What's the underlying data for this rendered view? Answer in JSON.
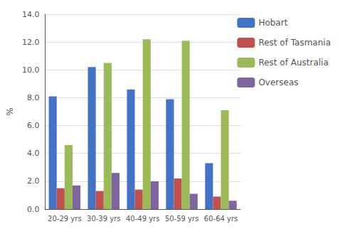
{
  "chart_data": {
    "type": "bar",
    "ylabel": "%",
    "categories": [
      "20-29 yrs",
      "30-39 yrs",
      "40-49 yrs",
      "50-59 yrs",
      "60-64 yrs"
    ],
    "series": [
      {
        "name": "Hobart",
        "color": "#4472C4",
        "values": [
          8.1,
          10.2,
          8.6,
          7.9,
          3.3
        ]
      },
      {
        "name": "Rest of Tasmania",
        "color": "#C0504D",
        "values": [
          1.5,
          1.3,
          1.4,
          2.2,
          0.9
        ]
      },
      {
        "name": "Rest of Australia",
        "color": "#9BBB59",
        "values": [
          4.6,
          10.5,
          12.2,
          12.1,
          7.1
        ]
      },
      {
        "name": "Overseas",
        "color": "#8064A2",
        "values": [
          1.7,
          2.6,
          2.0,
          1.1,
          0.6
        ]
      }
    ],
    "ylim": [
      0,
      14.0
    ],
    "yticks": [
      {
        "value": 0.0,
        "label": "0.0"
      },
      {
        "value": 2.0,
        "label": "2.0"
      },
      {
        "value": 4.0,
        "label": "4.0"
      },
      {
        "value": 6.0,
        "label": "6.0"
      },
      {
        "value": 8.0,
        "label": "8.0"
      },
      {
        "value": 10.0,
        "label": "10.0"
      },
      {
        "value": 12.0,
        "label": "12.0"
      },
      {
        "value": 14.0,
        "label": "14.0"
      }
    ],
    "grid": true,
    "legend": "right"
  }
}
